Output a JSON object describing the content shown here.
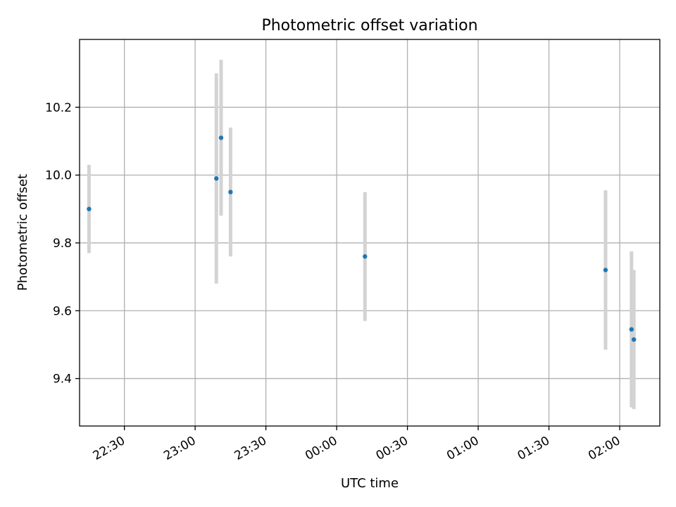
{
  "chart_data": {
    "type": "scatter",
    "title": "Photometric offset variation",
    "xlabel": "UTC time",
    "ylabel": "Photometric offset",
    "grid": true,
    "colors": {
      "marker": "#1f77b4",
      "errorbar": "#d3d3d3",
      "grid": "#b0b0b0"
    },
    "x_ticks": [
      "22:30",
      "23:00",
      "23:30",
      "00:00",
      "00:30",
      "01:00",
      "01:30",
      "02:00"
    ],
    "y_ticks": [
      "9.4",
      "9.6",
      "9.8",
      "10.0",
      "10.2"
    ],
    "x_range": [
      "22:11",
      "02:17"
    ],
    "y_range": [
      9.26,
      10.4
    ],
    "points": [
      {
        "x": "22:15",
        "y": 9.9,
        "err": 0.13
      },
      {
        "x": "23:09",
        "y": 9.99,
        "err": 0.31
      },
      {
        "x": "23:11",
        "y": 10.11,
        "err": 0.23
      },
      {
        "x": "23:15",
        "y": 9.95,
        "err": 0.19
      },
      {
        "x": "00:12",
        "y": 9.76,
        "err": 0.19
      },
      {
        "x": "01:54",
        "y": 9.72,
        "err": 0.235
      },
      {
        "x": "02:05",
        "y": 9.545,
        "err": 0.23
      },
      {
        "x": "02:06",
        "y": 9.515,
        "err": 0.205
      }
    ]
  }
}
